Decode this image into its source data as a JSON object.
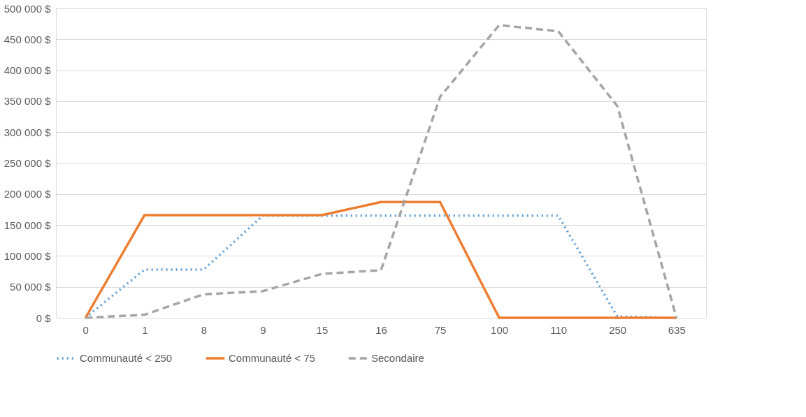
{
  "chart_data": {
    "type": "line",
    "categories": [
      "0",
      "1",
      "8",
      "9",
      "15",
      "16",
      "75",
      "100",
      "110",
      "250",
      "635"
    ],
    "series": [
      {
        "name": "Communauté < 250",
        "color": "#5b9bd5",
        "line_style": "dotted",
        "values": [
          0,
          78000,
          78000,
          165000,
          165000,
          165000,
          165000,
          165000,
          165000,
          2000,
          0
        ]
      },
      {
        "name": "Communauté < 75",
        "color": "#ed7d31",
        "line_style": "solid",
        "values": [
          0,
          166000,
          166000,
          166000,
          166000,
          187000,
          187000,
          0,
          0,
          0,
          0
        ]
      },
      {
        "name": "Secondaire",
        "color": "#a5a5a5",
        "line_style": "dashed",
        "values": [
          0,
          5000,
          38000,
          43000,
          71000,
          77000,
          357000,
          473000,
          463000,
          342000,
          0
        ]
      }
    ],
    "ylim": [
      0,
      500000
    ],
    "yticks": [
      {
        "value": 0,
        "label": "0 $"
      },
      {
        "value": 50000,
        "label": "50 000 $"
      },
      {
        "value": 100000,
        "label": "100 000 $"
      },
      {
        "value": 150000,
        "label": "150 000 $"
      },
      {
        "value": 200000,
        "label": "200 000 $"
      },
      {
        "value": 250000,
        "label": "250 000 $"
      },
      {
        "value": 300000,
        "label": "300 000 $"
      },
      {
        "value": 350000,
        "label": "350 000 $"
      },
      {
        "value": 400000,
        "label": "400 000 $"
      },
      {
        "value": 450000,
        "label": "450 000 $"
      },
      {
        "value": 500000,
        "label": "500 000 $"
      }
    ],
    "grid": "y",
    "legend": "bottom"
  }
}
